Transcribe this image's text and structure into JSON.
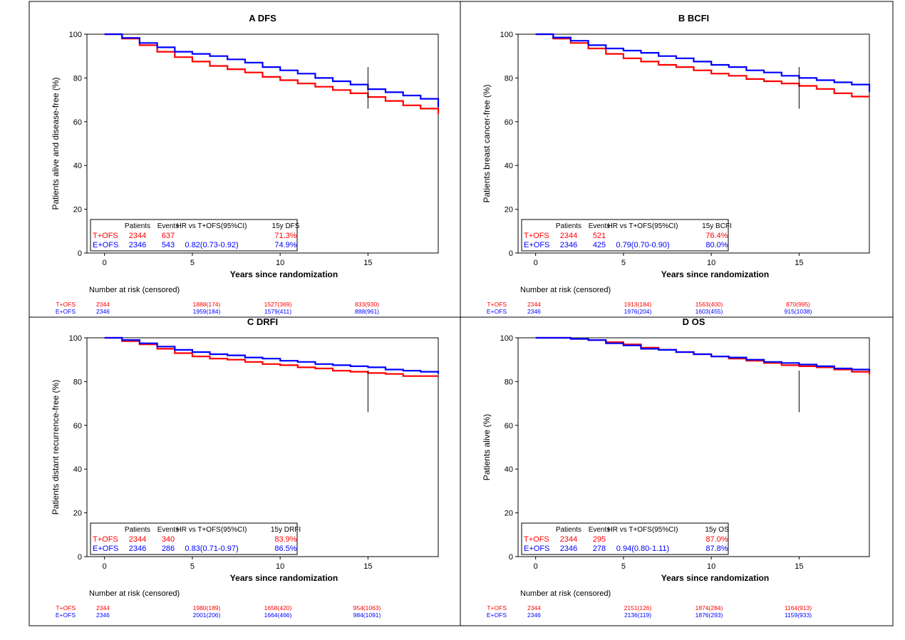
{
  "colors": {
    "t_ofs": "#ff0000",
    "e_ofs": "#0000ff",
    "frame": "#000000"
  },
  "common": {
    "xlabel": "Years since randomization",
    "risk_title": "Number at risk (censored)",
    "table_header": {
      "patients": "Patients",
      "events": "Events",
      "hr": "HR vs T+OFS(95%CI)"
    }
  },
  "chart_data": [
    {
      "type": "line",
      "title": "A DFS",
      "ylabel": "Patients alive and disease-free (%)",
      "xlabel": "Years since randomization",
      "xlim": [
        -1,
        19
      ],
      "ylim": [
        0,
        100
      ],
      "xticks": [
        0,
        5,
        10,
        15
      ],
      "yticks": [
        0,
        20,
        40,
        60,
        80,
        100
      ],
      "marker_x": 15,
      "grid": false,
      "legend_position": "bottom-left",
      "series": [
        {
          "name": "T+OFS",
          "color": "#ff0000",
          "x": [
            0,
            1,
            2,
            3,
            4,
            5,
            6,
            7,
            8,
            9,
            10,
            11,
            12,
            13,
            14,
            15,
            16,
            17,
            18,
            19
          ],
          "y": [
            100,
            98,
            95,
            92,
            89.5,
            87.5,
            85.5,
            84,
            82.5,
            80.5,
            79,
            77.5,
            76,
            74.5,
            73,
            71.3,
            69.5,
            67.5,
            66,
            64
          ]
        },
        {
          "name": "E+OFS",
          "color": "#0000ff",
          "x": [
            0,
            1,
            2,
            3,
            4,
            5,
            6,
            7,
            8,
            9,
            10,
            11,
            12,
            13,
            14,
            15,
            16,
            17,
            18,
            19
          ],
          "y": [
            100,
            98.3,
            96,
            94,
            92,
            91,
            90,
            88.5,
            87,
            85,
            83.5,
            82,
            80,
            78.5,
            77,
            74.9,
            73.5,
            72,
            70.5,
            67
          ]
        }
      ],
      "table": {
        "last_col": "15y DFS",
        "rows": [
          {
            "label": "T+OFS",
            "patients": "2344",
            "events": "637",
            "hr": "",
            "rate": "71.3%"
          },
          {
            "label": "E+OFS",
            "patients": "2346",
            "events": "543",
            "hr": "0.82(0.73-0.92)",
            "rate": "74.9%"
          }
        ]
      },
      "risk": [
        {
          "label": "T+OFS",
          "values": [
            "2344",
            "1888(174)",
            "1527(369)",
            "833(930)"
          ]
        },
        {
          "label": "E+OFS",
          "values": [
            "2346",
            "1959(184)",
            "1579(411)",
            "888(961)"
          ]
        }
      ]
    },
    {
      "type": "line",
      "title": "B BCFI",
      "ylabel": "Patients breast cancer-free (%)",
      "xlabel": "Years since randomization",
      "xlim": [
        -1,
        19
      ],
      "ylim": [
        0,
        100
      ],
      "xticks": [
        0,
        5,
        10,
        15
      ],
      "yticks": [
        0,
        20,
        40,
        60,
        80,
        100
      ],
      "marker_x": 15,
      "grid": false,
      "legend_position": "bottom-left",
      "series": [
        {
          "name": "T+OFS",
          "color": "#ff0000",
          "x": [
            0,
            1,
            2,
            3,
            4,
            5,
            6,
            7,
            8,
            9,
            10,
            11,
            12,
            13,
            14,
            15,
            16,
            17,
            18,
            19
          ],
          "y": [
            100,
            98,
            96,
            93.5,
            91,
            89,
            87.5,
            86,
            85,
            83.5,
            82,
            81,
            79.5,
            78.5,
            77.5,
            76.4,
            75,
            73,
            71.5,
            71.5
          ]
        },
        {
          "name": "E+OFS",
          "color": "#0000ff",
          "x": [
            0,
            1,
            2,
            3,
            4,
            5,
            6,
            7,
            8,
            9,
            10,
            11,
            12,
            13,
            14,
            15,
            16,
            17,
            18,
            19
          ],
          "y": [
            100,
            98.5,
            97,
            95,
            93.5,
            92.5,
            91.5,
            90,
            89,
            87.5,
            86,
            85,
            83.5,
            82.5,
            81,
            80,
            79,
            78,
            77,
            74
          ]
        }
      ],
      "table": {
        "last_col": "15y BCFI",
        "rows": [
          {
            "label": "T+OFS",
            "patients": "2344",
            "events": "521",
            "hr": "",
            "rate": "76.4%"
          },
          {
            "label": "E+OFS",
            "patients": "2346",
            "events": "425",
            "hr": "0.79(0.70-0.90)",
            "rate": "80.0%"
          }
        ]
      },
      "risk": [
        {
          "label": "T+OFS",
          "values": [
            "2344",
            "1913(184)",
            "1563(400)",
            "870(995)"
          ]
        },
        {
          "label": "E+OFS",
          "values": [
            "2346",
            "1976(204)",
            "1603(455)",
            "915(1038)"
          ]
        }
      ]
    },
    {
      "type": "line",
      "title": "C DRFI",
      "ylabel": "Patients distant recurrence-free (%)",
      "xlabel": "Years since randomization",
      "xlim": [
        -1,
        19
      ],
      "ylim": [
        0,
        100
      ],
      "xticks": [
        0,
        5,
        10,
        15
      ],
      "yticks": [
        0,
        20,
        40,
        60,
        80,
        100
      ],
      "marker_x": 15,
      "grid": false,
      "legend_position": "bottom-left",
      "series": [
        {
          "name": "T+OFS",
          "color": "#ff0000",
          "x": [
            0,
            1,
            2,
            3,
            4,
            5,
            6,
            7,
            8,
            9,
            10,
            11,
            12,
            13,
            14,
            15,
            16,
            17,
            18,
            19
          ],
          "y": [
            100,
            98.5,
            97,
            95,
            93,
            91.5,
            90.5,
            90,
            89,
            88,
            87.5,
            86.5,
            86,
            85,
            84.5,
            83.9,
            83.5,
            82.5,
            82.5,
            82.5
          ]
        },
        {
          "name": "E+OFS",
          "color": "#0000ff",
          "x": [
            0,
            1,
            2,
            3,
            4,
            5,
            6,
            7,
            8,
            9,
            10,
            11,
            12,
            13,
            14,
            15,
            16,
            17,
            18,
            19
          ],
          "y": [
            100,
            99,
            97.5,
            96,
            94.5,
            93.5,
            92.5,
            92,
            91,
            90.5,
            89.5,
            89,
            88,
            87.5,
            87,
            86.5,
            85.5,
            85,
            84.5,
            84
          ]
        }
      ],
      "table": {
        "last_col": "15y DRFI",
        "rows": [
          {
            "label": "T+OFS",
            "patients": "2344",
            "events": "340",
            "hr": "",
            "rate": "83.9%"
          },
          {
            "label": "E+OFS",
            "patients": "2346",
            "events": "286",
            "hr": "0.83(0.71-0.97)",
            "rate": "86.5%"
          }
        ]
      },
      "risk": [
        {
          "label": "T+OFS",
          "values": [
            "2344",
            "1980(189)",
            "1658(420)",
            "954(1063)"
          ]
        },
        {
          "label": "E+OFS",
          "values": [
            "2346",
            "2001(206)",
            "1664(466)",
            "984(1091)"
          ]
        }
      ]
    },
    {
      "type": "line",
      "title": "D OS",
      "ylabel": "Patients alive (%)",
      "xlabel": "Years since randomization",
      "xlim": [
        -1,
        19
      ],
      "ylim": [
        0,
        100
      ],
      "xticks": [
        0,
        5,
        10,
        15
      ],
      "yticks": [
        0,
        20,
        40,
        60,
        80,
        100
      ],
      "marker_x": 15,
      "grid": false,
      "legend_position": "bottom-left",
      "series": [
        {
          "name": "T+OFS",
          "color": "#ff0000",
          "x": [
            0,
            1,
            2,
            3,
            4,
            5,
            6,
            7,
            8,
            9,
            10,
            11,
            12,
            13,
            14,
            15,
            16,
            17,
            18,
            19
          ],
          "y": [
            100,
            100,
            99.5,
            99,
            98,
            97,
            95.5,
            94.5,
            93.5,
            92.5,
            91.5,
            90.5,
            89.5,
            88.5,
            87.5,
            87.0,
            86.5,
            85.5,
            84.5,
            83.5
          ]
        },
        {
          "name": "E+OFS",
          "color": "#0000ff",
          "x": [
            0,
            1,
            2,
            3,
            4,
            5,
            6,
            7,
            8,
            9,
            10,
            11,
            12,
            13,
            14,
            15,
            16,
            17,
            18,
            19
          ],
          "y": [
            100,
            100,
            99.5,
            99,
            97.5,
            96.5,
            95,
            94.5,
            93.5,
            92.5,
            91.5,
            91,
            90,
            89,
            88.5,
            87.8,
            87,
            86,
            85.5,
            85
          ]
        }
      ],
      "table": {
        "last_col": "15y OS",
        "rows": [
          {
            "label": "T+OFS",
            "patients": "2344",
            "events": "295",
            "hr": "",
            "rate": "87.0%"
          },
          {
            "label": "E+OFS",
            "patients": "2346",
            "events": "278",
            "hr": "0.94(0.80-1.11)",
            "rate": "87.8%"
          }
        ]
      },
      "risk": [
        {
          "label": "T+OFS",
          "values": [
            "2344",
            "2151(126)",
            "1874(284)",
            "1164(913)"
          ]
        },
        {
          "label": "E+OFS",
          "values": [
            "2346",
            "2136(119)",
            "1876(293)",
            "1159(933)"
          ]
        }
      ]
    }
  ]
}
